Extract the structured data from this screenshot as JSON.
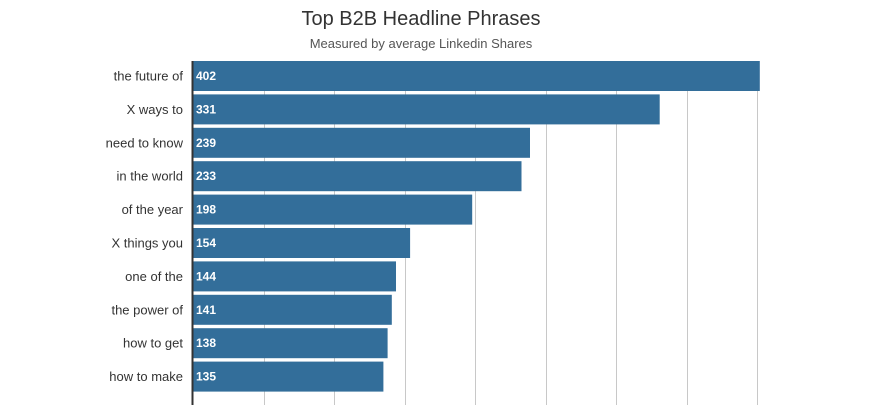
{
  "chart_data": {
    "type": "bar",
    "orientation": "horizontal",
    "title": "Top B2B Headline Phrases",
    "subtitle": "Measured by average Linkedin Shares",
    "xlabel": "",
    "ylabel": "",
    "categories": [
      "the future of",
      "X ways to",
      "need to know",
      "in the world",
      "of the year",
      "X things you",
      "one of the",
      "the power of",
      "how to get",
      "how to make"
    ],
    "values": [
      402,
      331,
      239,
      233,
      198,
      154,
      144,
      141,
      138,
      135
    ],
    "xlim": [
      0,
      400
    ],
    "grid": true,
    "legend": "none",
    "bar_color": "#336e9a",
    "axis_color": "#333333",
    "grid_color": "#c8c8c8"
  }
}
